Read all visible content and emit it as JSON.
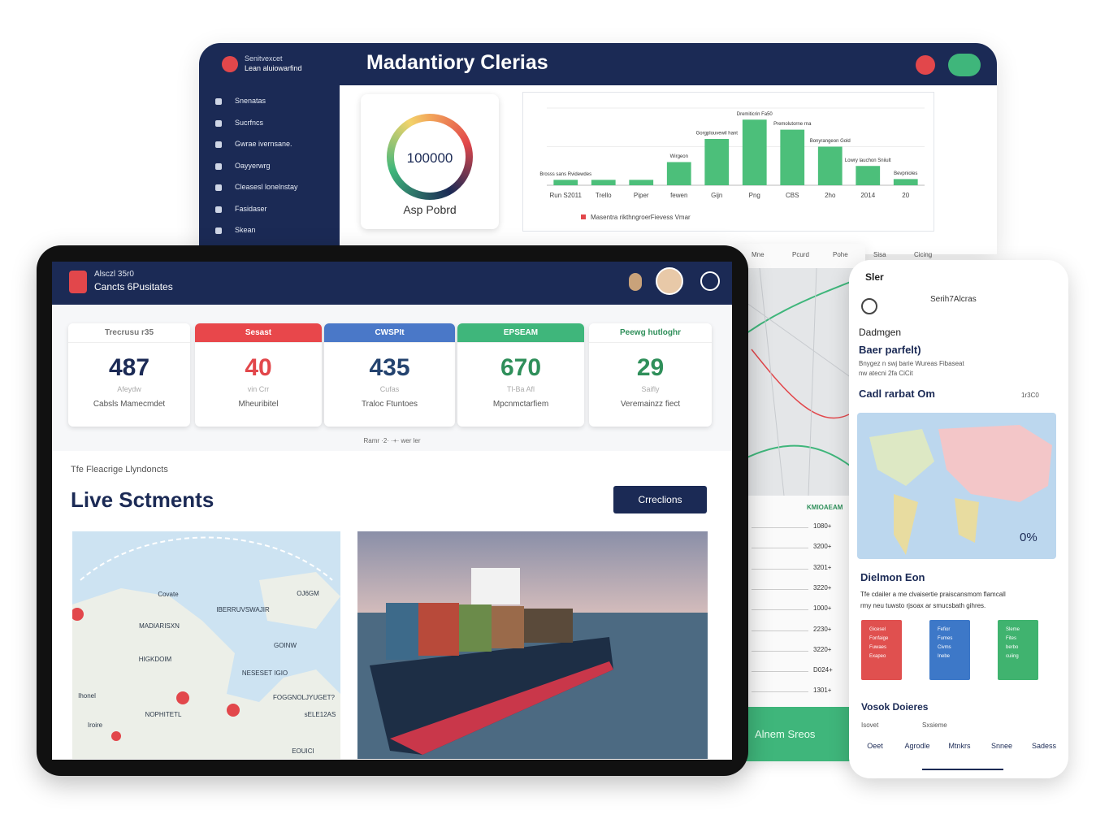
{
  "desktop": {
    "brand": [
      "Senitvexcet",
      "Lean aluiowarfind"
    ],
    "title": "Madantiory Clerias",
    "nav": [
      "Snenatas",
      "Sucrfncs",
      "Gwrae ivernsane.",
      "Oayyerwrg",
      "Cleasesl lonelnstay",
      "Fasidaser",
      "Skean"
    ],
    "gauge": {
      "value": "100000",
      "label": "Asp Pobrd"
    },
    "chart": {
      "type": "bar",
      "categories": [
        "Run S2011",
        "Trello",
        "Piper",
        "fewen",
        "Gijn",
        "Png",
        "CBS",
        "2ho",
        "2014",
        "20"
      ],
      "values": [
        7,
        7,
        7,
        30,
        60,
        85,
        72,
        50,
        25,
        8
      ],
      "bar_labels": [
        "Brosss sans Rvidewdes",
        null,
        null,
        "Wirgeon",
        "Gorgplouvewil hant",
        "Dremiticrin Fa50",
        "Premolutorne rna",
        "Bonyrangeon Gold",
        "Lowry lauchon Sniiult",
        "Bevpnioles"
      ],
      "color": "#4cbf7a",
      "ylim": [
        0,
        100
      ],
      "legend": "Masentra rikthngroerFievess Vmar"
    },
    "map_header": [
      "Mne",
      "Pcurd",
      "Pohe",
      "Sisa",
      "Cicing"
    ]
  },
  "tablet": {
    "header": [
      "Alsczl 35r0",
      "Cancts 6Pusitates"
    ],
    "cards": [
      {
        "head": "Trecrusu r35",
        "value": 487,
        "sub": "Afeydw",
        "label": "Cabsls Mamecmdet",
        "color": "#1b2a55",
        "band": "#ffffff",
        "head_color": "#777777"
      },
      {
        "head": "Sesast",
        "value": 40,
        "sub": "vin Crr",
        "label": "Mheuribitel",
        "color": "#e2474b",
        "band": "#e8474b",
        "head_color": "#ffffff"
      },
      {
        "head": "CWSPIt",
        "value": 435,
        "sub": "Cufas",
        "label": "Traloc Ftuntoes",
        "color": "#24436f",
        "band": "#4a78c8",
        "head_color": "#ffffff"
      },
      {
        "head": "EPSEAM",
        "value": 670,
        "sub": "Tl-Ba Afl",
        "label": "Mpcnmctarfiem",
        "color": "#2f8f5a",
        "band": "#3fb67b",
        "head_color": "#ffffff"
      },
      {
        "head": "Peewg hutloghr",
        "value": 29,
        "sub": "Saifly",
        "label": "Veremainzz fiect",
        "color": "#2f8f5a",
        "band": "#ffffff",
        "head_color": "#2f8f5a"
      }
    ],
    "footnote": "Ramr ·2· ·+· wer ler",
    "kicker": "Tfe Fleacrige Llyndoncts",
    "heading": "Live Sctments",
    "button": "Crreclions",
    "map_labels": [
      "Covate",
      "OJ6GM",
      "IBERRUVSWAJIR",
      "MADIARISXN",
      "GOINW",
      "HIGKDOIM",
      "NESESET IGIO",
      "FOGGNOLJYUGET?",
      "NOPHITETL",
      "sELE12AS",
      "Ihonel",
      "Iroire",
      "EOUICI"
    ]
  },
  "middle": {
    "heading": "KMIOAEAM",
    "rows": [
      "1080+",
      "3200+",
      "3201+",
      "3220+",
      "1000+",
      "2230+",
      "3220+",
      "D024+",
      "1301+"
    ],
    "footer": "Alnem Sreos"
  },
  "phone": {
    "status": "Sler",
    "app_title": "Serih7Alcras",
    "field_label": "Dadmgen",
    "field_value": "Baer parfelt)",
    "field_note": [
      "Bnygez n swj barie Wureas Fibaseat",
      "nw atecni 2fa CiCit"
    ],
    "map_title": "Cadl rarbat Om",
    "map_meta": "1r3C0",
    "map_value": "0%",
    "section": "Dielmon Eon",
    "text": [
      "Tfe cdailer a me clvaisertie praiscansmom flamcall",
      "rmy neu tuwsto rjsoax ar smucsbath gihres."
    ],
    "tiles": [
      {
        "lines": [
          "Gicesel",
          "Fonfaige",
          "Fuwaes",
          "Exapeo"
        ],
        "color": "#e0504f"
      },
      {
        "lines": [
          "Fefior",
          "Fumes",
          "Civms",
          "Inebe"
        ],
        "color": "#3d78c8"
      },
      {
        "lines": [
          "Sleme",
          "Fites",
          "berbo",
          "cuiing"
        ],
        "color": "#40b36f"
      }
    ],
    "list_title": "Vosok Doieres",
    "list_head": [
      "Isovet",
      "Sxsieme"
    ],
    "tabs": [
      "Oeet",
      "Agrodle",
      "Mtnkrs",
      "Snnee",
      "Sadess"
    ]
  }
}
